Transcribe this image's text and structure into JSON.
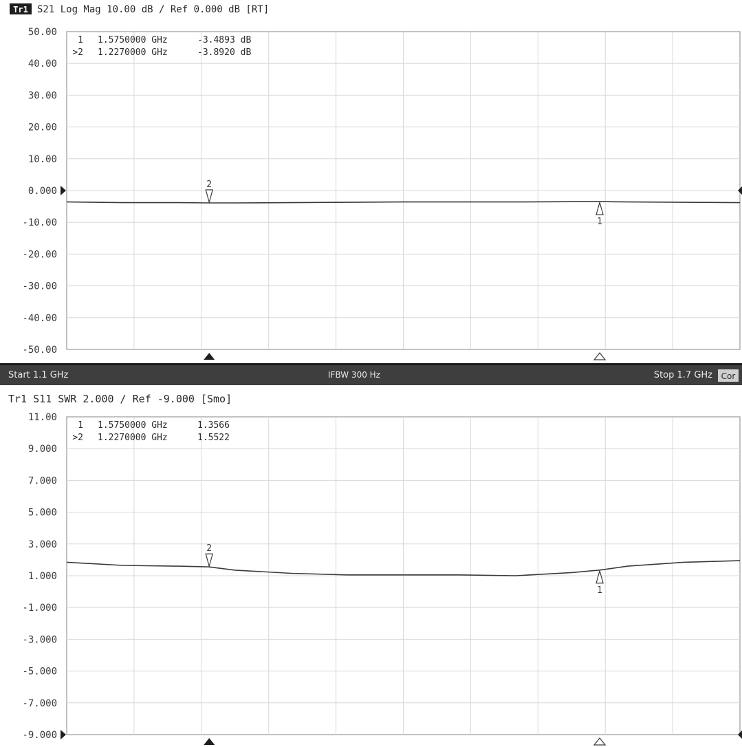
{
  "status_bar": {
    "start": "Start 1.1 GHz",
    "ifbw": "IFBW 300 Hz",
    "stop": "Stop 1.7 GHz",
    "badge": "Cor"
  },
  "chart_data": [
    {
      "type": "line",
      "title": "S21 Log Mag 10.00 dB / Ref 0.000 dB [RT]",
      "trace_badge": "Tr1",
      "x_unit": "GHz",
      "xlim": [
        1.1,
        1.7
      ],
      "ylim": [
        -50,
        50
      ],
      "grid": true,
      "reference_level": 0,
      "y_tick_labels": [
        "50.00",
        "40.00",
        "30.00",
        "20.00",
        "10.00",
        "0.000",
        "-10.00",
        "-20.00",
        "-30.00",
        "-40.00",
        "-50.00"
      ],
      "series": [
        {
          "x": [
            1.1,
            1.15,
            1.2,
            1.227,
            1.25,
            1.3,
            1.35,
            1.4,
            1.45,
            1.5,
            1.55,
            1.575,
            1.6,
            1.65,
            1.7
          ],
          "y": [
            -3.6,
            -3.8,
            -3.8,
            -3.89,
            -3.9,
            -3.8,
            -3.7,
            -3.6,
            -3.6,
            -3.6,
            -3.5,
            -3.49,
            -3.6,
            -3.7,
            -3.8
          ]
        }
      ],
      "markers": [
        {
          "id": "1",
          "x": 1.575,
          "y": -3.4893,
          "style": "up"
        },
        {
          "id": "2",
          "x": 1.227,
          "y": -3.892,
          "style": "down"
        }
      ],
      "marker_table": [
        {
          "label": "1",
          "freq": "1.5750000 GHz",
          "value": "-3.4893 dB"
        },
        {
          "label": ">2",
          "freq": "1.2270000 GHz",
          "value": "-3.8920 dB"
        }
      ],
      "bottom_markers": [
        {
          "x": 1.227,
          "style": "filled"
        },
        {
          "x": 1.575,
          "style": "hollow"
        }
      ]
    },
    {
      "type": "line",
      "title": "Tr1 S11 SWR 2.000 / Ref -9.000 [Smo]",
      "x_unit": "GHz",
      "xlim": [
        1.1,
        1.7
      ],
      "ylim": [
        -9,
        11
      ],
      "grid": true,
      "reference_level": -9,
      "y_tick_labels": [
        "11.00",
        "9.000",
        "7.000",
        "5.000",
        "3.000",
        "1.000",
        "-1.000",
        "-3.000",
        "-5.000",
        "-7.000",
        "-9.000"
      ],
      "series": [
        {
          "x": [
            1.1,
            1.15,
            1.2,
            1.227,
            1.25,
            1.3,
            1.35,
            1.4,
            1.45,
            1.5,
            1.55,
            1.575,
            1.6,
            1.65,
            1.7
          ],
          "y": [
            1.85,
            1.65,
            1.6,
            1.5522,
            1.35,
            1.15,
            1.05,
            1.05,
            1.05,
            1.0,
            1.2,
            1.3566,
            1.6,
            1.85,
            1.95
          ]
        }
      ],
      "markers": [
        {
          "id": "1",
          "x": 1.575,
          "y": 1.3566,
          "style": "up"
        },
        {
          "id": "2",
          "x": 1.227,
          "y": 1.5522,
          "style": "down"
        }
      ],
      "marker_table": [
        {
          "label": "1",
          "freq": "1.5750000 GHz",
          "value": "1.3566"
        },
        {
          "label": ">2",
          "freq": "1.2270000 GHz",
          "value": "1.5522"
        }
      ],
      "bottom_markers": [
        {
          "x": 1.227,
          "style": "filled"
        },
        {
          "x": 1.575,
          "style": "hollow"
        }
      ]
    }
  ]
}
